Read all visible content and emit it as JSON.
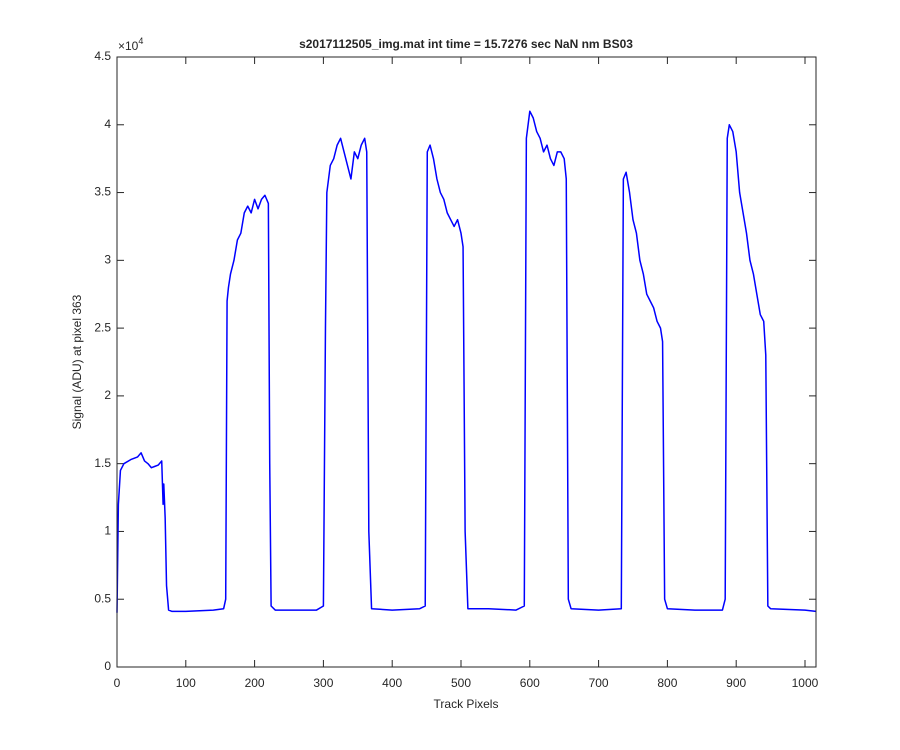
{
  "chart_data": {
    "type": "line",
    "title": "s2017112505_img.mat int time = 15.7276 sec  NaN nm BS03",
    "x_label": "Track Pixels",
    "y_label": "Signal (ADU) at pixel 363",
    "y_exponent_label": {
      "base": "×10",
      "power": "4"
    },
    "xlim": [
      0,
      1016
    ],
    "xticks": [
      0,
      100,
      200,
      300,
      400,
      500,
      600,
      700,
      800,
      900,
      1000
    ],
    "ylim": [
      0,
      4.5
    ],
    "yticks": [
      0,
      0.5,
      1,
      1.5,
      2,
      2.5,
      3,
      3.5,
      4,
      4.5
    ],
    "grid": false,
    "series": [
      {
        "name": "signal",
        "color": "#0000ff",
        "x": [
          0,
          2,
          5,
          10,
          20,
          30,
          35,
          40,
          45,
          50,
          55,
          60,
          65,
          67,
          68,
          70,
          72,
          75,
          80,
          100,
          120,
          140,
          155,
          158,
          160,
          162,
          165,
          170,
          175,
          180,
          185,
          190,
          195,
          200,
          205,
          210,
          215,
          220,
          222,
          224,
          230,
          260,
          290,
          300,
          303,
          305,
          310,
          315,
          320,
          325,
          330,
          335,
          340,
          345,
          350,
          355,
          360,
          363,
          366,
          370,
          400,
          440,
          448,
          451,
          455,
          460,
          465,
          470,
          475,
          480,
          485,
          490,
          495,
          500,
          503,
          506,
          510,
          540,
          580,
          592,
          595,
          600,
          605,
          610,
          615,
          620,
          625,
          630,
          635,
          640,
          645,
          650,
          653,
          656,
          660,
          700,
          733,
          736,
          740,
          745,
          750,
          755,
          760,
          765,
          770,
          775,
          780,
          785,
          790,
          793,
          796,
          800,
          840,
          880,
          884,
          887,
          890,
          895,
          900,
          905,
          910,
          915,
          920,
          925,
          930,
          935,
          940,
          943,
          946,
          950,
          1000,
          1016
        ],
        "values": [
          0.4,
          1.2,
          1.45,
          1.5,
          1.53,
          1.55,
          1.58,
          1.52,
          1.5,
          1.47,
          1.48,
          1.49,
          1.52,
          1.2,
          1.35,
          1.1,
          0.6,
          0.42,
          0.41,
          0.41,
          0.415,
          0.42,
          0.43,
          0.5,
          2.7,
          2.8,
          2.9,
          3.0,
          3.15,
          3.2,
          3.35,
          3.4,
          3.35,
          3.45,
          3.38,
          3.45,
          3.48,
          3.42,
          1.5,
          0.45,
          0.42,
          0.42,
          0.42,
          0.45,
          2.5,
          3.5,
          3.7,
          3.75,
          3.85,
          3.9,
          3.8,
          3.7,
          3.6,
          3.8,
          3.75,
          3.85,
          3.9,
          3.8,
          1.0,
          0.43,
          0.42,
          0.43,
          0.45,
          3.8,
          3.85,
          3.75,
          3.6,
          3.5,
          3.45,
          3.35,
          3.3,
          3.25,
          3.3,
          3.2,
          3.1,
          1.0,
          0.43,
          0.43,
          0.42,
          0.45,
          3.9,
          4.1,
          4.05,
          3.95,
          3.9,
          3.8,
          3.85,
          3.75,
          3.7,
          3.8,
          3.8,
          3.75,
          3.6,
          0.5,
          0.43,
          0.42,
          0.43,
          3.6,
          3.65,
          3.5,
          3.3,
          3.2,
          3.0,
          2.9,
          2.75,
          2.7,
          2.65,
          2.55,
          2.5,
          2.4,
          0.5,
          0.43,
          0.42,
          0.42,
          0.5,
          3.9,
          4.0,
          3.95,
          3.8,
          3.5,
          3.35,
          3.2,
          3.0,
          2.9,
          2.75,
          2.6,
          2.55,
          2.3,
          0.45,
          0.43,
          0.42,
          0.41
        ]
      }
    ]
  }
}
